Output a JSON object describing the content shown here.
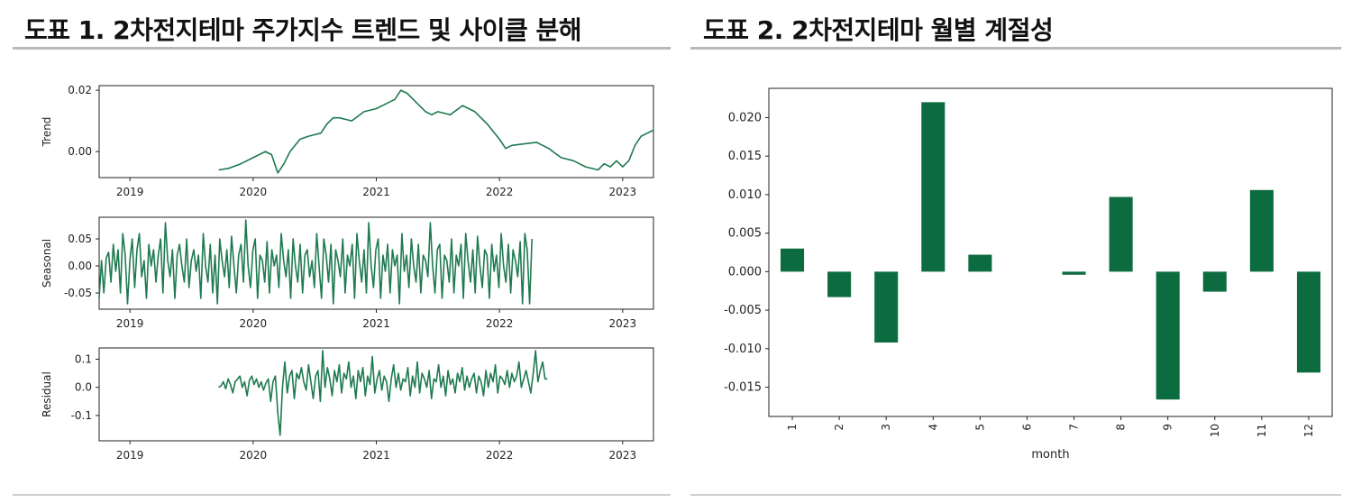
{
  "figure1": {
    "title": "도표 1. 2차전지테마 주가지수 트렌드 및 사이클 분해",
    "line_color": "#1f7a50",
    "x_ticks": [
      "2019",
      "2020",
      "2021",
      "2022",
      "2023"
    ],
    "panels": [
      {
        "ylabel": "Trend",
        "ytick_labels": [
          "0.02",
          "0.00"
        ]
      },
      {
        "ylabel": "Seasonal",
        "ytick_labels": [
          "0.05",
          "0.00",
          "-0.05"
        ]
      },
      {
        "ylabel": "Residual",
        "ytick_labels": [
          "0.1",
          "0.0",
          "-0.1"
        ]
      }
    ]
  },
  "figure2": {
    "title": "도표 2. 2차전지테마 월별 계절성",
    "bar_color": "#0c6b3f",
    "ytick_labels": [
      "0.020",
      "0.015",
      "0.010",
      "0.005",
      "0.000",
      "-0.005",
      "-0.010",
      "-0.015"
    ],
    "xlabel": "month"
  },
  "chart_data": [
    {
      "type": "line",
      "title": "Trend",
      "xlim": [
        2018.75,
        2023.25
      ],
      "ylim": [
        -0.0085,
        0.0215
      ],
      "x": [
        2019.72,
        2019.8,
        2019.9,
        2020.0,
        2020.1,
        2020.15,
        2020.2,
        2020.25,
        2020.3,
        2020.38,
        2020.45,
        2020.55,
        2020.6,
        2020.65,
        2020.7,
        2020.8,
        2020.9,
        2021.0,
        2021.1,
        2021.15,
        2021.2,
        2021.25,
        2021.3,
        2021.4,
        2021.45,
        2021.5,
        2021.6,
        2021.7,
        2021.8,
        2021.9,
        2022.0,
        2022.05,
        2022.1,
        2022.2,
        2022.3,
        2022.4,
        2022.5,
        2022.6,
        2022.7,
        2022.8,
        2022.85,
        2022.9,
        2022.95,
        2023.0,
        2023.05,
        2023.1,
        2023.15,
        2023.25
      ],
      "values": [
        -0.006,
        -0.0055,
        -0.004,
        -0.002,
        0.0,
        -0.001,
        -0.007,
        -0.004,
        0.0,
        0.004,
        0.005,
        0.006,
        0.009,
        0.011,
        0.011,
        0.01,
        0.013,
        0.014,
        0.016,
        0.017,
        0.02,
        0.019,
        0.017,
        0.013,
        0.012,
        0.013,
        0.012,
        0.015,
        0.013,
        0.009,
        0.004,
        0.001,
        0.002,
        0.0025,
        0.003,
        0.001,
        -0.002,
        -0.003,
        -0.005,
        -0.006,
        -0.004,
        -0.005,
        -0.003,
        -0.005,
        -0.003,
        0.002,
        0.005,
        0.007
      ]
    },
    {
      "type": "line",
      "title": "Seasonal",
      "xlim": [
        2018.75,
        2023.25
      ],
      "ylim": [
        -0.08,
        0.09
      ],
      "x_start": 2018.75,
      "x_step": 0.0192,
      "values": [
        -0.06,
        0.01,
        -0.05,
        0.015,
        0.025,
        -0.03,
        0.04,
        -0.01,
        0.03,
        -0.05,
        0.06,
        0.02,
        -0.07,
        0.01,
        0.05,
        -0.04,
        0.03,
        0.06,
        -0.02,
        0.01,
        -0.06,
        0.04,
        0.0,
        0.03,
        -0.03,
        0.02,
        0.05,
        -0.05,
        0.08,
        0.01,
        -0.02,
        0.03,
        -0.06,
        0.02,
        0.04,
        0.0,
        -0.03,
        0.05,
        -0.04,
        0.01,
        0.03,
        -0.01,
        0.02,
        -0.06,
        0.06,
        0.0,
        -0.03,
        0.04,
        -0.05,
        0.02,
        -0.07,
        0.05,
        0.01,
        -0.02,
        0.03,
        -0.04,
        0.055,
        0.0,
        -0.05,
        0.02,
        0.04,
        -0.03,
        0.085,
        0.0,
        -0.04,
        0.03,
        0.05,
        -0.06,
        0.02,
        0.01,
        -0.03,
        0.045,
        -0.05,
        0.03,
        0.0,
        0.02,
        -0.04,
        0.06,
        0.01,
        -0.02,
        0.03,
        -0.06,
        0.05,
        0.0,
        -0.03,
        0.04,
        -0.05,
        0.02,
        0.03,
        -0.02,
        0.01,
        -0.04,
        0.06,
        0.0,
        -0.06,
        0.05,
        0.02,
        -0.03,
        0.04,
        -0.07,
        0.03,
        0.01,
        -0.02,
        0.05,
        -0.05,
        0.02,
        0.0,
        0.04,
        -0.06,
        0.06,
        0.01,
        -0.03,
        0.03,
        -0.05,
        0.08,
        0.0,
        -0.04,
        0.03,
        0.05,
        -0.06,
        0.02,
        -0.01,
        0.04,
        -0.05,
        0.03,
        0.0,
        0.02,
        -0.07,
        0.06,
        -0.01,
        0.02,
        -0.04,
        0.05,
        0.0,
        -0.03,
        0.04,
        -0.05,
        0.02,
        0.01,
        -0.02,
        0.08,
        0.0,
        -0.05,
        0.03,
        0.04,
        -0.06,
        0.02,
        0.01,
        -0.03,
        0.05,
        -0.05,
        0.02,
        0.0,
        0.04,
        -0.06,
        0.06,
        0.01,
        -0.03,
        0.03,
        -0.05,
        0.055,
        0.0,
        -0.04,
        0.03,
        0.02,
        -0.06,
        0.04,
        -0.01,
        0.02,
        -0.04,
        0.06,
        0.0,
        -0.03,
        0.04,
        -0.05,
        0.03,
        0.01,
        -0.02,
        0.045,
        -0.07,
        0.06,
        0.03,
        -0.07,
        0.05
      ]
    },
    {
      "type": "line",
      "title": "Residual",
      "xlim": [
        2018.75,
        2023.25
      ],
      "ylim": [
        -0.19,
        0.14
      ],
      "x_start": 2019.72,
      "x_step": 0.0192,
      "values": [
        0.0,
        0.005,
        0.02,
        -0.005,
        0.03,
        0.01,
        -0.02,
        0.02,
        0.03,
        0.04,
        0.0,
        0.02,
        -0.03,
        0.025,
        0.04,
        0.01,
        0.03,
        0.0,
        0.02,
        -0.01,
        0.015,
        0.03,
        -0.05,
        0.02,
        0.04,
        -0.09,
        -0.17,
        0.0,
        0.09,
        -0.02,
        0.04,
        0.06,
        -0.04,
        0.05,
        0.03,
        0.07,
        0.02,
        -0.01,
        0.08,
        0.02,
        -0.04,
        0.04,
        0.06,
        -0.05,
        0.13,
        0.0,
        0.07,
        0.03,
        -0.03,
        0.06,
        0.02,
        0.08,
        -0.02,
        0.05,
        0.03,
        0.09,
        0.0,
        0.04,
        -0.04,
        0.06,
        0.02,
        0.07,
        -0.03,
        0.04,
        0.01,
        0.11,
        -0.02,
        0.03,
        0.06,
        -0.01,
        0.04,
        0.02,
        -0.05,
        0.03,
        0.08,
        0.0,
        0.05,
        -0.01,
        0.03,
        0.02,
        0.07,
        -0.03,
        0.04,
        0.0,
        0.09,
        -0.02,
        0.05,
        0.03,
        0.0,
        0.06,
        -0.04,
        0.03,
        0.02,
        0.08,
        0.0,
        0.04,
        -0.03,
        0.06,
        0.01,
        0.03,
        -0.02,
        0.05,
        0.02,
        0.07,
        -0.01,
        0.04,
        0.0,
        0.03,
        0.05,
        -0.02,
        0.04,
        0.02,
        -0.03,
        0.06,
        0.0,
        0.05,
        0.02,
        0.08,
        -0.02,
        0.04,
        0.03,
        0.01,
        0.06,
        0.0,
        0.05,
        0.02,
        0.04,
        0.09,
        0.0,
        0.03,
        0.06,
        0.02,
        -0.02,
        0.05,
        0.13,
        0.02,
        0.06,
        0.09,
        0.03,
        0.03
      ]
    },
    {
      "type": "bar",
      "categories": [
        "1",
        "2",
        "3",
        "4",
        "5",
        "6",
        "7",
        "8",
        "9",
        "10",
        "11",
        "12"
      ],
      "values": [
        0.003,
        -0.0033,
        -0.0092,
        0.022,
        0.0022,
        0.0,
        -0.0004,
        0.0097,
        -0.0166,
        -0.0026,
        0.0106,
        -0.0131
      ],
      "xlabel": "month",
      "ylabel": "",
      "ylim": [
        -0.0188,
        0.0238
      ]
    }
  ]
}
